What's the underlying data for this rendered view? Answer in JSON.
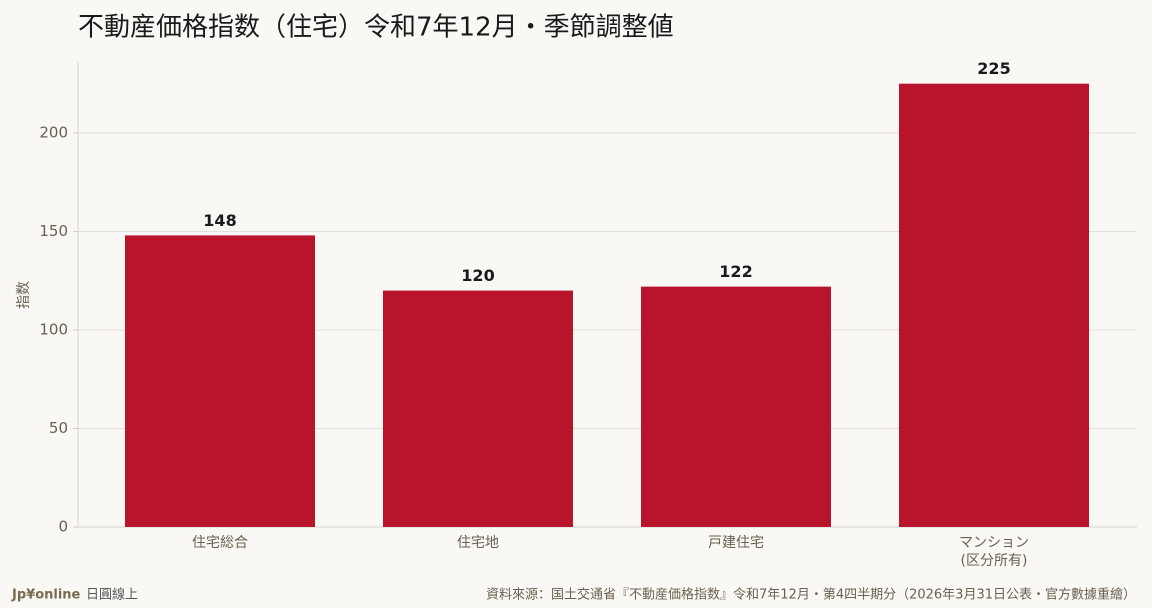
{
  "chart_data": {
    "type": "bar",
    "title": "不動産価格指数（住宅）令和7年12月・季節調整値",
    "y_label": "指数",
    "categories": [
      "住宅総合",
      "住宅地",
      "戸建住宅",
      "マンション\n(区分所有)"
    ],
    "values": [
      148,
      120,
      122,
      225
    ],
    "color": "#b8152d",
    "ylim": [
      0,
      236
    ],
    "yticks": [
      0,
      50,
      100,
      150,
      200
    ],
    "grid": true
  },
  "footer": {
    "brand": "Jp¥online",
    "brand_sub": "日圓線上",
    "source": "資料來源：国土交通省『不動産価格指数』令和7年12月・第4四半期分（2026年3月31日公表・官方數據重繪）"
  }
}
